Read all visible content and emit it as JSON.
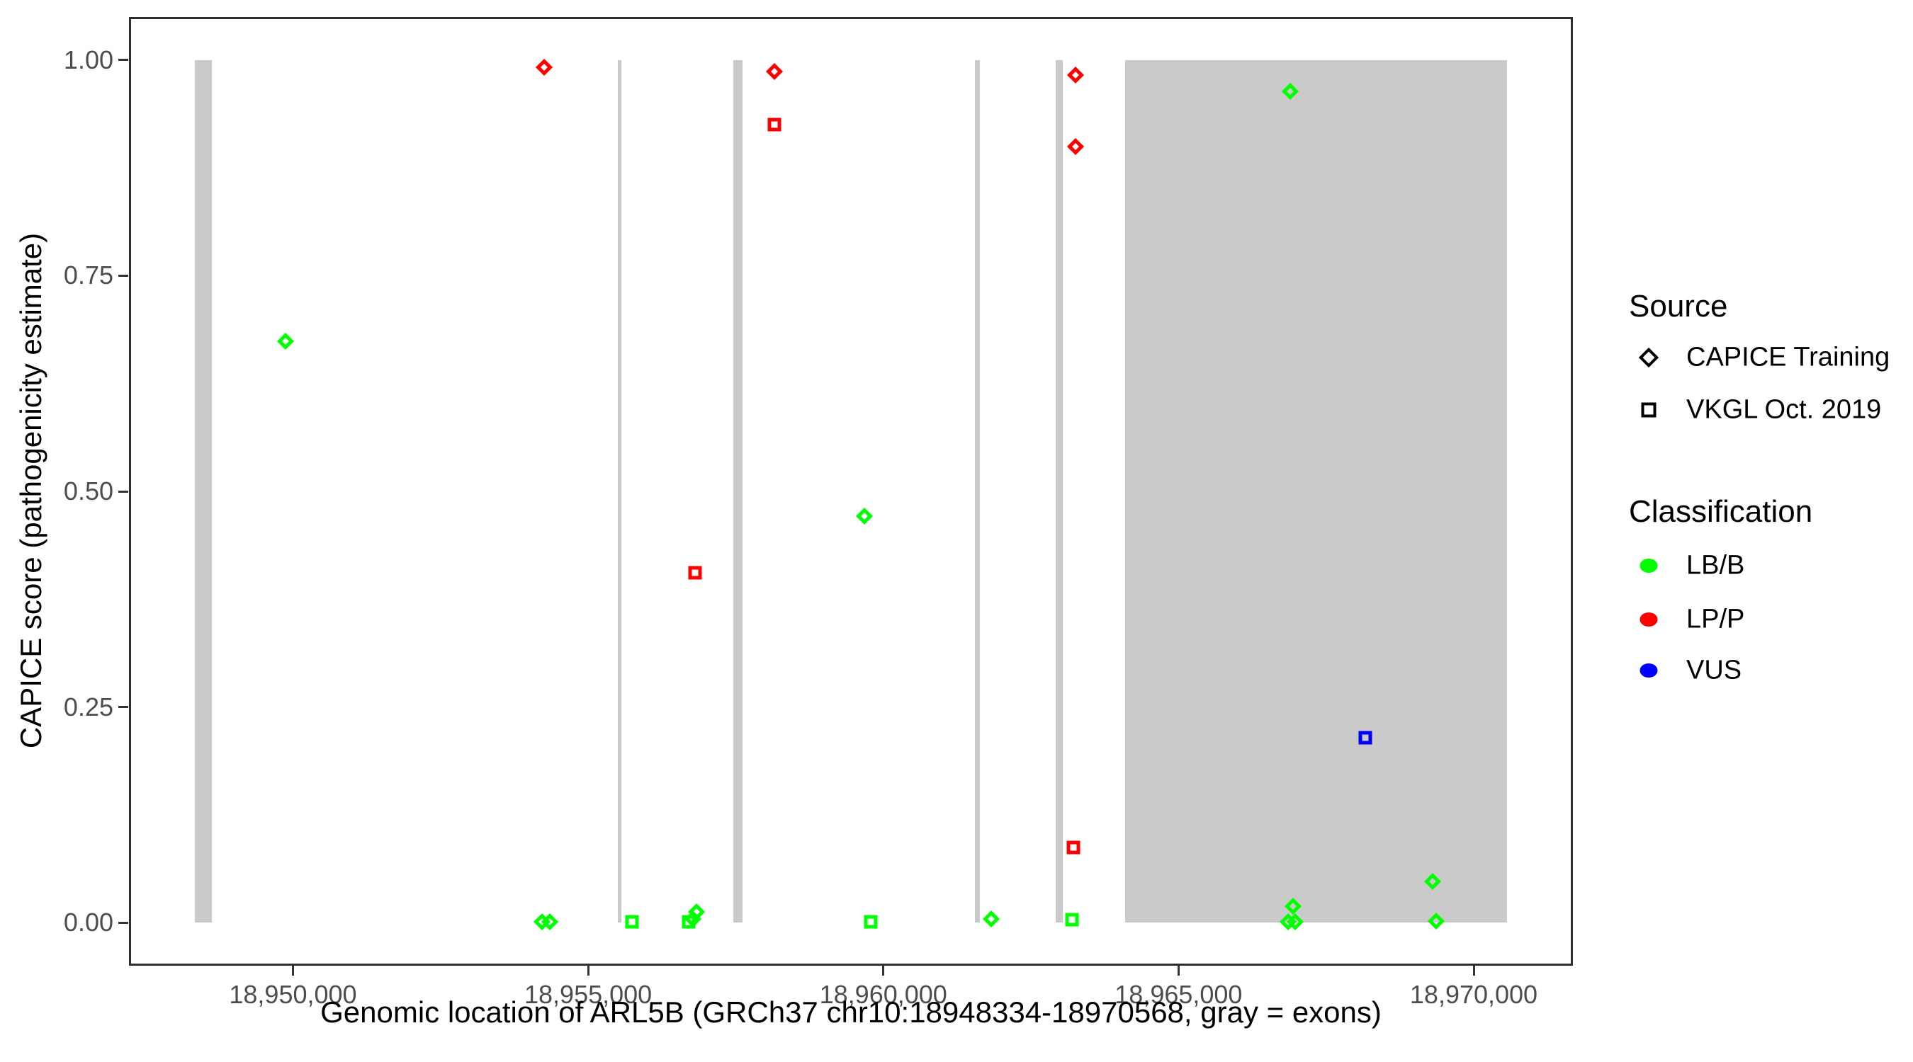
{
  "figure": {
    "x_axis_title": "Genomic location of ARL5B (GRCh37 chr10:18948334-18970568, gray = exons)",
    "y_axis_title": "CAPICE score (pathogenicity estimate)"
  },
  "legend": {
    "source": {
      "title": "Source",
      "items": [
        {
          "label": "CAPICE Training",
          "shape": "diamond"
        },
        {
          "label": "VKGL Oct. 2019",
          "shape": "square"
        }
      ]
    },
    "classification": {
      "title": "Classification",
      "items": [
        {
          "label": "LB/B",
          "color_key": "LB/B"
        },
        {
          "label": "LP/P",
          "color_key": "LP/P"
        },
        {
          "label": "VUS",
          "color_key": "VUS"
        }
      ]
    }
  },
  "colors": {
    "LB/B": "#00ff00",
    "LP/P": "#ff0000",
    "VUS": "#0000ff",
    "exon": "#cacaca"
  },
  "chart_data": {
    "type": "scatter",
    "title": "",
    "xlabel": "Genomic location of ARL5B (GRCh37 chr10:18948334-18970568, gray = exons)",
    "ylabel": "CAPICE score (pathogenicity estimate)",
    "xlim": [
      18947222,
      18971680
    ],
    "ylim": [
      -0.05,
      1.05
    ],
    "grid": false,
    "legend_position": "right",
    "x_ticks": [
      {
        "value": 18950000,
        "label": "18,950,000"
      },
      {
        "value": 18955000,
        "label": "18,955,000"
      },
      {
        "value": 18960000,
        "label": "18,960,000"
      },
      {
        "value": 18965000,
        "label": "18,965,000"
      },
      {
        "value": 18970000,
        "label": "18,970,000"
      }
    ],
    "y_ticks": [
      {
        "value": 0.0,
        "label": "0.00"
      },
      {
        "value": 0.25,
        "label": "0.25"
      },
      {
        "value": 0.5,
        "label": "0.50"
      },
      {
        "value": 0.75,
        "label": "0.75"
      },
      {
        "value": 1.0,
        "label": "1.00"
      }
    ],
    "marker_by_source": {
      "CAPICE Training": "diamond",
      "VKGL Oct. 2019": "square"
    },
    "exon_regions_bp": [
      [
        18948334,
        18948624
      ],
      [
        18955500,
        18955562
      ],
      [
        18957455,
        18957612
      ],
      [
        18961550,
        18961632
      ],
      [
        18962915,
        18963040
      ],
      [
        18964100,
        18970568
      ]
    ],
    "exon_score_span": [
      0,
      1
    ],
    "points": [
      {
        "bp": 18949880,
        "score": 0.674,
        "source": "CAPICE Training",
        "classification": "LB/B"
      },
      {
        "bp": 18954215,
        "score": 0.001,
        "source": "CAPICE Training",
        "classification": "LB/B"
      },
      {
        "bp": 18954345,
        "score": 0.001,
        "source": "CAPICE Training",
        "classification": "LB/B"
      },
      {
        "bp": 18954260,
        "score": 0.992,
        "source": "CAPICE Training",
        "classification": "LP/P"
      },
      {
        "bp": 18955745,
        "score": 0.001,
        "source": "VKGL Oct. 2019",
        "classification": "LB/B"
      },
      {
        "bp": 18956700,
        "score": 0.001,
        "source": "VKGL Oct. 2019",
        "classification": "LB/B"
      },
      {
        "bp": 18956770,
        "score": 0.004,
        "source": "CAPICE Training",
        "classification": "LB/B"
      },
      {
        "bp": 18956835,
        "score": 0.012,
        "source": "CAPICE Training",
        "classification": "LB/B"
      },
      {
        "bp": 18956810,
        "score": 0.406,
        "source": "VKGL Oct. 2019",
        "classification": "LP/P"
      },
      {
        "bp": 18958150,
        "score": 0.987,
        "source": "CAPICE Training",
        "classification": "LP/P"
      },
      {
        "bp": 18958150,
        "score": 0.925,
        "source": "VKGL Oct. 2019",
        "classification": "LP/P"
      },
      {
        "bp": 18959680,
        "score": 0.471,
        "source": "CAPICE Training",
        "classification": "LB/B"
      },
      {
        "bp": 18959790,
        "score": 0.001,
        "source": "VKGL Oct. 2019",
        "classification": "LB/B"
      },
      {
        "bp": 18961825,
        "score": 0.004,
        "source": "CAPICE Training",
        "classification": "LB/B"
      },
      {
        "bp": 18963250,
        "score": 0.983,
        "source": "CAPICE Training",
        "classification": "LP/P"
      },
      {
        "bp": 18963250,
        "score": 0.9,
        "source": "CAPICE Training",
        "classification": "LP/P"
      },
      {
        "bp": 18963215,
        "score": 0.087,
        "source": "VKGL Oct. 2019",
        "classification": "LP/P"
      },
      {
        "bp": 18963200,
        "score": 0.003,
        "source": "VKGL Oct. 2019",
        "classification": "LB/B"
      },
      {
        "bp": 18966890,
        "score": 0.964,
        "source": "CAPICE Training",
        "classification": "LB/B"
      },
      {
        "bp": 18966940,
        "score": 0.019,
        "source": "CAPICE Training",
        "classification": "LB/B"
      },
      {
        "bp": 18966855,
        "score": 0.001,
        "source": "CAPICE Training",
        "classification": "LB/B"
      },
      {
        "bp": 18966975,
        "score": 0.001,
        "source": "CAPICE Training",
        "classification": "LB/B"
      },
      {
        "bp": 18968160,
        "score": 0.214,
        "source": "VKGL Oct. 2019",
        "classification": "VUS"
      },
      {
        "bp": 18969300,
        "score": 0.048,
        "source": "CAPICE Training",
        "classification": "LB/B"
      },
      {
        "bp": 18969360,
        "score": 0.002,
        "source": "CAPICE Training",
        "classification": "LB/B"
      }
    ]
  }
}
